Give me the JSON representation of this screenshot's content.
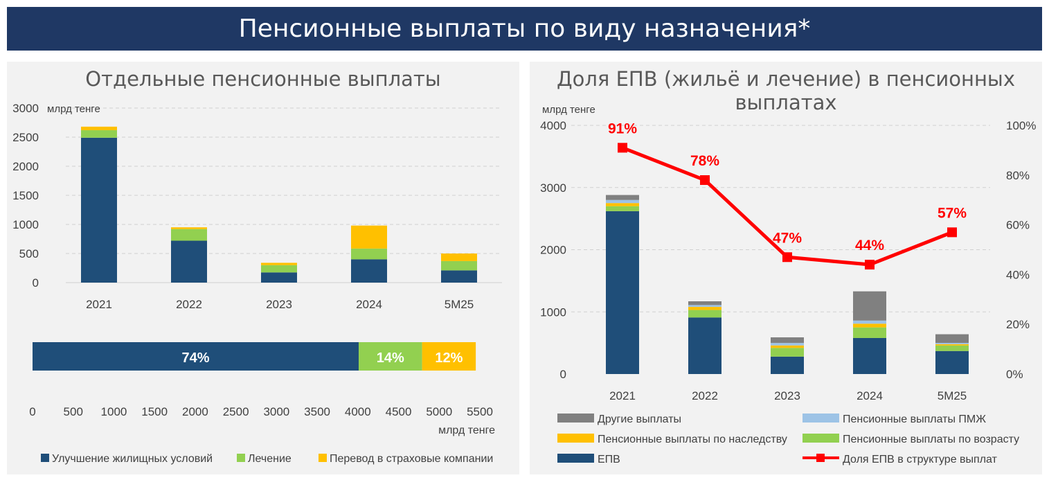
{
  "page_title": "Пенсионные выплаты по виду назначения*",
  "colors": {
    "header_bg": "#1f3864",
    "panel_bg": "#f2f2f2",
    "housing": "#1f4e79",
    "treatment": "#92d050",
    "insurance": "#ffc000",
    "other": "#808080",
    "pmzh": "#9dc3e6",
    "line": "#ff0000"
  },
  "chart_data": [
    {
      "id": "separate",
      "type": "bar",
      "stacked": true,
      "title": "Отдельные пенсионные выплаты",
      "ylabel": "млрд тенге",
      "ylim": [
        0,
        3000
      ],
      "yticks": [
        "0",
        "500",
        "1000",
        "1500",
        "2000",
        "2500",
        "3000"
      ],
      "categories": [
        "2021",
        "2022",
        "2023",
        "2024",
        "5M25"
      ],
      "series": [
        {
          "name": "Улучшение жилищных условий",
          "key": "housing",
          "values": [
            2490,
            720,
            175,
            400,
            210
          ]
        },
        {
          "name": "Лечение",
          "key": "treatment",
          "values": [
            130,
            200,
            125,
            185,
            160
          ]
        },
        {
          "name": "Перевод в страховые компании",
          "key": "insurance",
          "values": [
            60,
            30,
            40,
            395,
            130
          ]
        }
      ],
      "legend_position": "bottom"
    },
    {
      "id": "share_bar",
      "type": "bar",
      "orientation": "horizontal",
      "stacked": true,
      "xlabel": "млрд тенге",
      "xlim": [
        0,
        5500
      ],
      "xticks": [
        "0",
        "500",
        "1000",
        "1500",
        "2000",
        "2500",
        "3000",
        "3500",
        "4000",
        "4500",
        "5000",
        "5500"
      ],
      "series": [
        {
          "name": "Улучшение жилищных условий",
          "key": "housing",
          "value": 4010,
          "label": "74%"
        },
        {
          "name": "Лечение",
          "key": "treatment",
          "value": 780,
          "label": "14%"
        },
        {
          "name": "Перевод в страховые компании",
          "key": "insurance",
          "value": 660,
          "label": "12%"
        }
      ]
    },
    {
      "id": "epv_share",
      "type": "bar",
      "stacked": true,
      "title": "Доля ЕПВ (жильё и лечение) в пенсионных выплатах",
      "ylabel": "млрд тенге",
      "ylim": [
        0,
        4000
      ],
      "yticks": [
        "0",
        "1000",
        "2000",
        "3000",
        "4000"
      ],
      "y2lim": [
        0,
        100
      ],
      "y2ticks": [
        "0%",
        "20%",
        "40%",
        "60%",
        "80%",
        "100%"
      ],
      "categories": [
        "2021",
        "2022",
        "2023",
        "2024",
        "5M25"
      ],
      "series": [
        {
          "name": "ЕПВ",
          "key": "housing",
          "values": [
            2620,
            910,
            280,
            580,
            370
          ]
        },
        {
          "name": "Пенсионные выплаты по возрасту",
          "key": "treatment",
          "values": [
            80,
            120,
            140,
            170,
            90
          ]
        },
        {
          "name": "Пенсионные выплаты по наследству",
          "key": "insurance",
          "values": [
            50,
            50,
            40,
            60,
            20
          ]
        },
        {
          "name": "Пенсионные выплаты ПМЖ",
          "key": "pmzh",
          "values": [
            50,
            30,
            40,
            50,
            20
          ]
        },
        {
          "name": "Другие выплаты",
          "key": "other",
          "values": [
            80,
            60,
            90,
            470,
            140
          ]
        }
      ],
      "line": {
        "name": "Доля ЕПВ в структуре выплат",
        "values": [
          91,
          78,
          47,
          44,
          57
        ],
        "labels": [
          "91%",
          "78%",
          "47%",
          "44%",
          "57%"
        ]
      },
      "legend_position": "bottom"
    }
  ]
}
